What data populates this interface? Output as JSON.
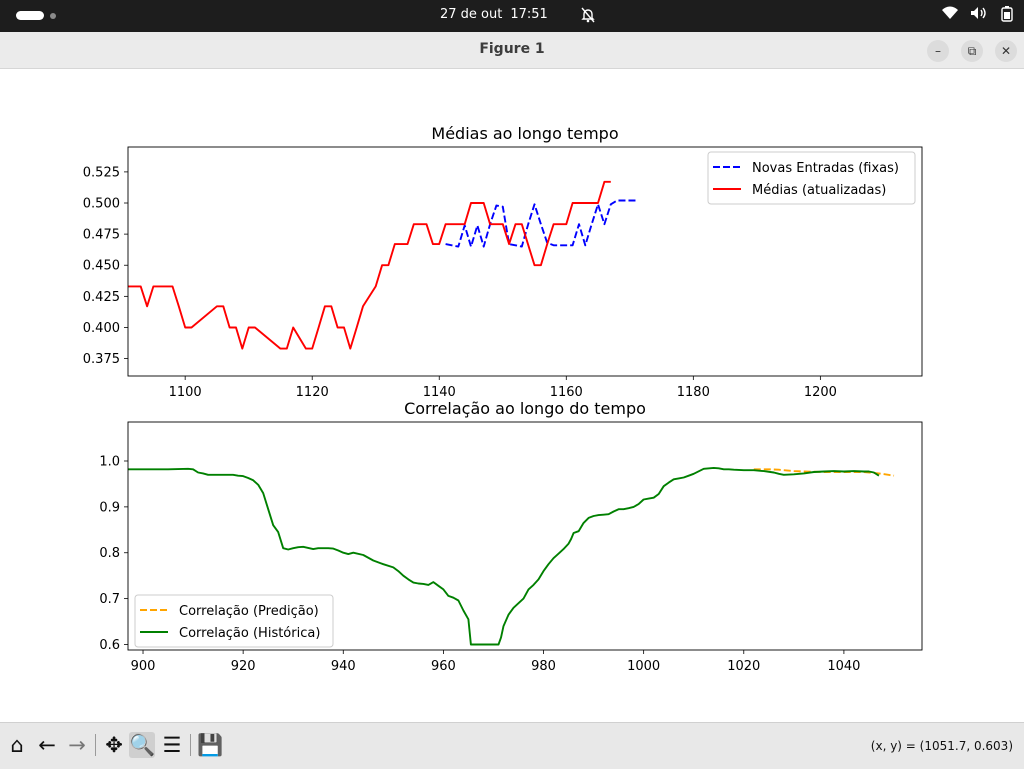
{
  "system_bar": {
    "date": "27 de out",
    "time": "17:51",
    "icons": [
      "wifi-icon",
      "volume-icon",
      "battery-icon"
    ]
  },
  "window": {
    "title": "Figure 1",
    "controls": [
      "minimize-icon",
      "restore-icon",
      "close-icon"
    ]
  },
  "toolbar": {
    "buttons": [
      "home-icon",
      "back-icon",
      "forward-icon",
      "pan-icon",
      "zoom-icon",
      "configure-icon",
      "save-icon"
    ],
    "coords": "(x, y) = (1051.7, 0.603)"
  },
  "chart_data": [
    {
      "type": "line",
      "title": "Médias ao longo tempo",
      "xlim": [
        1091,
        1216
      ],
      "ylim": [
        0.361,
        0.545
      ],
      "xticks": [
        1100,
        1120,
        1140,
        1160,
        1180,
        1200
      ],
      "yticks": [
        0.375,
        0.4,
        0.425,
        0.45,
        0.475,
        0.5,
        0.525
      ],
      "ytick_labels": [
        "0.375",
        "0.400",
        "0.425",
        "0.450",
        "0.475",
        "0.500",
        "0.525"
      ],
      "grid": false,
      "legend": "upper right",
      "series": [
        {
          "name": "Novas Entradas (fixas)",
          "color": "#0000ff",
          "style": "dashed",
          "x": [
            1141,
            1143,
            1144,
            1145,
            1146,
            1147,
            1148,
            1149,
            1150,
            1151,
            1152,
            1153,
            1154,
            1155,
            1156,
            1157,
            1158,
            1159,
            1160,
            1161,
            1162,
            1163,
            1164,
            1165,
            1166,
            1167,
            1168,
            1169,
            1170,
            1171
          ],
          "y": [
            0.467,
            0.465,
            0.482,
            0.465,
            0.482,
            0.465,
            0.483,
            0.498,
            0.497,
            0.467,
            0.466,
            0.465,
            0.483,
            0.499,
            0.483,
            0.468,
            0.466,
            0.466,
            0.466,
            0.466,
            0.483,
            0.466,
            0.483,
            0.499,
            0.483,
            0.499,
            0.502,
            0.502,
            0.502,
            0.502
          ]
        },
        {
          "name": "Médias (atualizadas)",
          "color": "#ff0000",
          "style": "solid",
          "x": [
            1091,
            1093,
            1094,
            1095,
            1098,
            1099,
            1100,
            1101,
            1105,
            1106,
            1107,
            1108,
            1109,
            1110,
            1111,
            1115,
            1116,
            1117,
            1119,
            1120,
            1121,
            1122,
            1123,
            1124,
            1125,
            1126,
            1127,
            1128,
            1130,
            1131,
            1132,
            1133,
            1135,
            1136,
            1138,
            1139,
            1140,
            1141,
            1144,
            1145,
            1147,
            1148,
            1150,
            1151,
            1152,
            1153,
            1155,
            1156,
            1157,
            1158,
            1159,
            1160,
            1161,
            1165,
            1166,
            1167
          ],
          "y": [
            0.433,
            0.433,
            0.417,
            0.433,
            0.433,
            0.417,
            0.4,
            0.4,
            0.417,
            0.417,
            0.4,
            0.4,
            0.383,
            0.4,
            0.4,
            0.383,
            0.383,
            0.4,
            0.383,
            0.383,
            0.4,
            0.417,
            0.417,
            0.4,
            0.4,
            0.383,
            0.4,
            0.417,
            0.433,
            0.45,
            0.45,
            0.467,
            0.467,
            0.483,
            0.483,
            0.467,
            0.467,
            0.483,
            0.483,
            0.5,
            0.5,
            0.483,
            0.483,
            0.467,
            0.483,
            0.483,
            0.45,
            0.45,
            0.467,
            0.483,
            0.483,
            0.483,
            0.5,
            0.5,
            0.517,
            0.517
          ]
        }
      ]
    },
    {
      "type": "line",
      "title": "Correlação ao longo do tempo",
      "xlim": [
        897,
        1055.6
      ],
      "ylim": [
        0.588,
        1.085
      ],
      "xticks": [
        900,
        920,
        940,
        960,
        980,
        1000,
        1020,
        1040
      ],
      "yticks": [
        0.6,
        0.7,
        0.8,
        0.9,
        1.0
      ],
      "ytick_labels": [
        "0.6",
        "0.7",
        "0.8",
        "0.9",
        "1.0"
      ],
      "grid": false,
      "legend": "lower left",
      "series": [
        {
          "name": "Correlação (Predição)",
          "color": "#ffa500",
          "style": "dashed",
          "x": [
            1022,
            1025,
            1027,
            1030,
            1032,
            1036,
            1040,
            1044,
            1047,
            1050
          ],
          "y": [
            0.982,
            0.982,
            0.981,
            0.978,
            0.977,
            0.976,
            0.976,
            0.976,
            0.973,
            0.968
          ]
        },
        {
          "name": "Correlação (Histórica)",
          "color": "#008000",
          "style": "solid",
          "x": [
            897,
            905,
            909,
            910,
            911,
            912,
            913,
            915,
            918,
            919,
            920,
            921,
            922,
            923,
            924,
            925,
            926,
            927,
            928,
            929,
            930,
            931,
            932,
            934,
            935,
            936,
            937,
            938,
            939,
            940,
            941,
            942,
            944,
            946,
            948,
            950,
            951,
            952,
            953,
            954,
            955,
            956,
            957,
            958,
            959,
            960,
            961,
            962,
            963,
            964,
            965,
            965.5,
            971,
            971.5,
            972,
            973,
            974,
            975,
            976,
            977,
            978,
            979,
            980,
            981,
            982,
            983,
            984,
            985,
            985.5,
            986,
            987,
            988,
            989,
            990,
            991,
            992,
            993,
            994,
            995,
            996,
            997,
            998,
            999,
            1000,
            1001,
            1002,
            1003,
            1004,
            1005,
            1006,
            1007,
            1008,
            1009,
            1010,
            1012,
            1014,
            1015,
            1016,
            1017,
            1018,
            1020,
            1022,
            1024,
            1026,
            1027,
            1028,
            1030,
            1032,
            1034,
            1036,
            1038,
            1040,
            1042,
            1044,
            1045,
            1046,
            1047
          ],
          "y": [
            0.982,
            0.982,
            0.983,
            0.982,
            0.975,
            0.973,
            0.97,
            0.97,
            0.97,
            0.968,
            0.967,
            0.963,
            0.958,
            0.948,
            0.93,
            0.895,
            0.86,
            0.845,
            0.81,
            0.807,
            0.81,
            0.812,
            0.813,
            0.808,
            0.81,
            0.81,
            0.81,
            0.809,
            0.805,
            0.8,
            0.797,
            0.8,
            0.795,
            0.783,
            0.775,
            0.768,
            0.76,
            0.75,
            0.742,
            0.735,
            0.733,
            0.732,
            0.73,
            0.736,
            0.728,
            0.72,
            0.706,
            0.702,
            0.696,
            0.674,
            0.655,
            0.6,
            0.6,
            0.615,
            0.64,
            0.665,
            0.68,
            0.69,
            0.7,
            0.72,
            0.73,
            0.742,
            0.76,
            0.775,
            0.788,
            0.798,
            0.808,
            0.82,
            0.83,
            0.843,
            0.847,
            0.865,
            0.876,
            0.88,
            0.882,
            0.883,
            0.884,
            0.89,
            0.895,
            0.895,
            0.897,
            0.9,
            0.906,
            0.916,
            0.918,
            0.92,
            0.928,
            0.945,
            0.953,
            0.96,
            0.962,
            0.964,
            0.968,
            0.972,
            0.983,
            0.985,
            0.984,
            0.982,
            0.982,
            0.981,
            0.98,
            0.98,
            0.978,
            0.975,
            0.972,
            0.97,
            0.971,
            0.973,
            0.976,
            0.977,
            0.978,
            0.977,
            0.978,
            0.977,
            0.977,
            0.975,
            0.968
          ]
        }
      ]
    }
  ]
}
